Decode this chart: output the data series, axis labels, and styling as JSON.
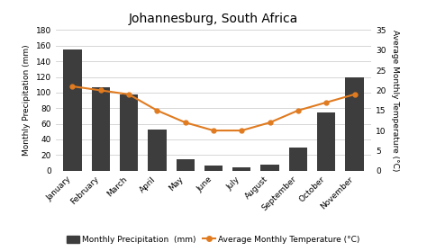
{
  "title": "Johannesburg, South Africa",
  "months": [
    "January",
    "February",
    "March",
    "April",
    "May",
    "June",
    "July",
    "August",
    "September",
    "October",
    "November"
  ],
  "precipitation": [
    155,
    107,
    98,
    53,
    15,
    7,
    4,
    8,
    30,
    75,
    120
  ],
  "temperature": [
    21,
    20,
    19,
    15,
    12,
    10,
    10,
    12,
    15,
    17,
    19
  ],
  "bar_color": "#3d3d3d",
  "line_color": "#e07b20",
  "marker_color": "#e07b20",
  "background_color": "#ffffff",
  "grid_color": "#d0d0d0",
  "ylim_precip": [
    0,
    180
  ],
  "ylim_temp": [
    0,
    35
  ],
  "yticks_precip": [
    0,
    20,
    40,
    60,
    80,
    100,
    120,
    140,
    160,
    180
  ],
  "yticks_temp": [
    0,
    5,
    10,
    15,
    20,
    25,
    30,
    35
  ],
  "ylabel_left": "Monthly Precipitation (mm)",
  "ylabel_right": "Average Monthly Temperature (°C)",
  "legend_precip": "Monthly Precipitation  (mm)",
  "legend_temp": "Average Monthly Temperature (°C)"
}
